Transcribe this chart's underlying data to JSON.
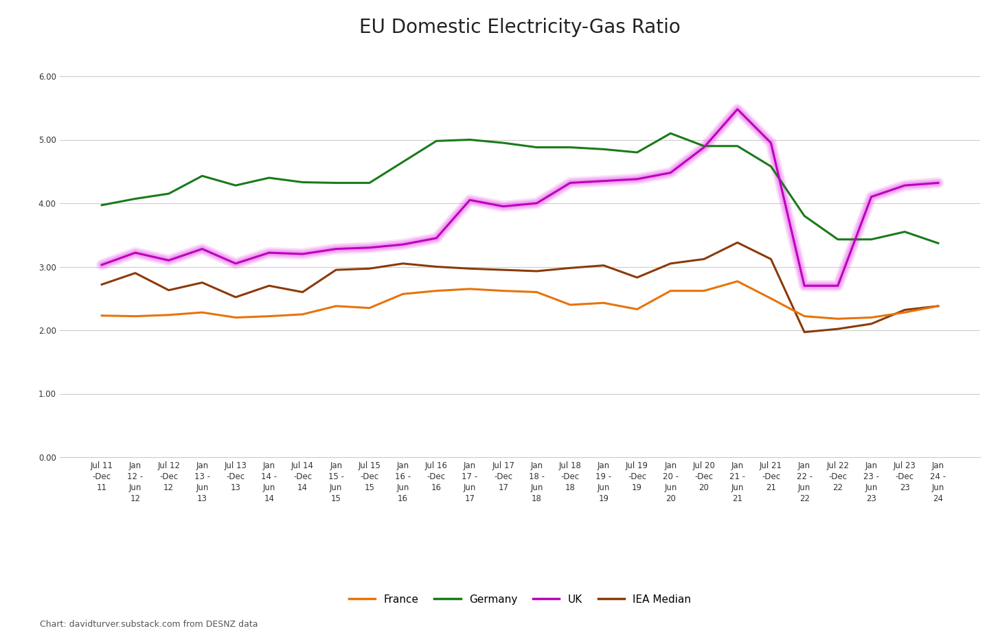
{
  "title": "EU Domestic Electricity-Gas Ratio",
  "source_text": "Chart: davidturver.substack.com from DESNZ data",
  "x_labels": [
    "Jul 11\n-Dec\n11",
    "Jan\n12 -\nJun\n12",
    "Jul 12\n-Dec\n12",
    "Jan\n13 -\nJun\n13",
    "Jul 13\n-Dec\n13",
    "Jan\n14 -\nJun\n14",
    "Jul 14\n-Dec\n14",
    "Jan\n15 -\nJun\n15",
    "Jul 15\n-Dec\n15",
    "Jan\n16 -\nJun\n16",
    "Jul 16\n-Dec\n16",
    "Jan\n17 -\nJun\n17",
    "Jul 17\n-Dec\n17",
    "Jan\n18 -\nJun\n18",
    "Jul 18\n-Dec\n18",
    "Jan\n19 -\nJun\n19",
    "Jul 19\n-Dec\n19",
    "Jan\n20 -\nJun\n20",
    "Jul 20\n-Dec\n20",
    "Jan\n21 -\nJun\n21",
    "Jul 21\n-Dec\n21",
    "Jan\n22 -\nJun\n22",
    "Jul 22\n-Dec\n22",
    "Jan\n23 -\nJun\n23",
    "Jul 23\n-Dec\n23",
    "Jan\n24 -\nJun\n24"
  ],
  "france": [
    2.23,
    2.22,
    2.24,
    2.28,
    2.2,
    2.22,
    2.25,
    2.38,
    2.35,
    2.57,
    2.62,
    2.65,
    2.62,
    2.6,
    2.4,
    2.43,
    2.33,
    2.62,
    2.62,
    2.77,
    2.5,
    2.22,
    2.18,
    2.2,
    2.28,
    2.38
  ],
  "germany": [
    3.97,
    4.07,
    4.15,
    4.43,
    4.28,
    4.4,
    4.33,
    4.32,
    4.32,
    4.65,
    4.98,
    5.0,
    4.95,
    4.88,
    4.88,
    4.85,
    4.8,
    5.1,
    4.9,
    4.9,
    4.58,
    3.8,
    3.43,
    3.43,
    3.55,
    3.37
  ],
  "uk": [
    3.03,
    3.22,
    3.1,
    3.28,
    3.05,
    3.22,
    3.2,
    3.28,
    3.3,
    3.35,
    3.45,
    4.05,
    3.95,
    4.0,
    4.32,
    4.35,
    4.38,
    4.48,
    4.88,
    5.48,
    4.95,
    2.7,
    2.7,
    4.1,
    4.28,
    4.32
  ],
  "iea_median": [
    2.72,
    2.9,
    2.63,
    2.75,
    2.52,
    2.7,
    2.6,
    2.95,
    2.97,
    3.05,
    3.0,
    2.97,
    2.95,
    2.93,
    2.98,
    3.02,
    2.83,
    3.05,
    3.12,
    3.38,
    3.12,
    1.97,
    2.02,
    2.1,
    2.32,
    2.38
  ],
  "france_color": "#E8730A",
  "germany_color": "#1a7a1a",
  "uk_color": "#bb00bb",
  "uk_glow_color": "#ee66ee",
  "iea_color": "#8B3A0A",
  "background_color": "#ffffff",
  "grid_color": "#cccccc",
  "ylim": [
    0.0,
    6.5
  ],
  "yticks": [
    0.0,
    1.0,
    2.0,
    3.0,
    4.0,
    5.0,
    6.0
  ],
  "ytick_labels": [
    "0.00",
    "1.00",
    "2.00",
    "3.00",
    "4.00",
    "5.00",
    "6.00"
  ],
  "legend_labels": [
    "France",
    "Germany",
    "UK",
    "IEA Median"
  ],
  "title_fontsize": 20,
  "axis_tick_fontsize": 8.5,
  "legend_fontsize": 11,
  "source_fontsize": 9
}
